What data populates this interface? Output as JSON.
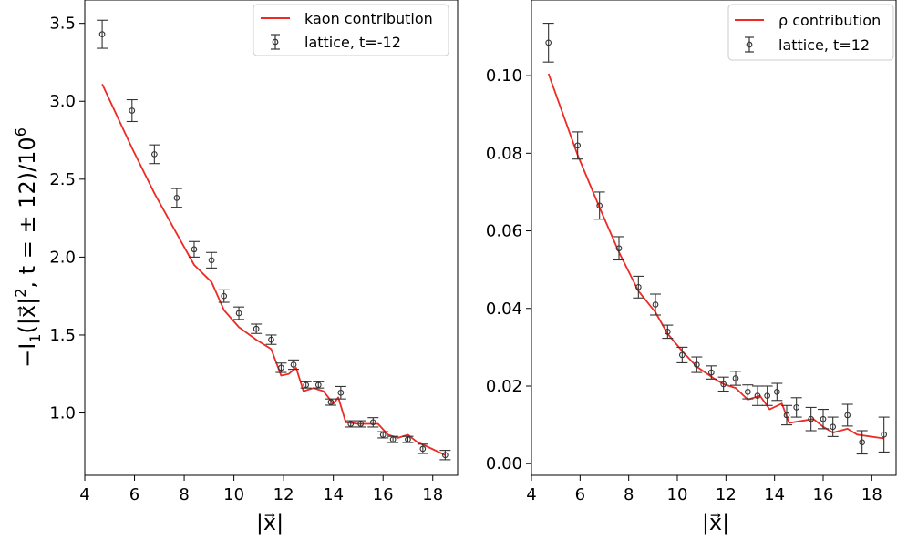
{
  "chart_data": [
    {
      "type": "line",
      "ylabel_parts": {
        "pre": "−I",
        "sub": "1",
        "mid": "(|x⃗|",
        "sup2": "2",
        "post": ", t = ± 12)/10",
        "sup6": "6"
      },
      "xlabel": "|x⃗|",
      "xlim": [
        4,
        19
      ],
      "ylim": [
        0.6,
        3.65
      ],
      "xticks": [
        4,
        6,
        8,
        10,
        12,
        14,
        16,
        18
      ],
      "yticks": [
        1.0,
        1.5,
        2.0,
        2.5,
        3.0,
        3.5
      ],
      "ytick_labels": [
        "1.0",
        "1.5",
        "2.0",
        "2.5",
        "3.0",
        "3.5"
      ],
      "legend_position": "top-right",
      "colors": {
        "model": "#ee2a24",
        "lattice": "#333333"
      },
      "model": {
        "name": "kaon contribution",
        "x": [
          4.7,
          5.9,
          6.8,
          7.7,
          8.4,
          9.1,
          9.6,
          10.2,
          10.9,
          11.5,
          11.9,
          12.2,
          12.5,
          12.8,
          13.2,
          13.6,
          14.0,
          14.2,
          14.5,
          15.0,
          15.4,
          15.8,
          16.2,
          16.6,
          17.0,
          17.4,
          17.7,
          18.5
        ],
        "y": [
          3.11,
          2.7,
          2.41,
          2.15,
          1.95,
          1.84,
          1.66,
          1.55,
          1.47,
          1.41,
          1.24,
          1.25,
          1.29,
          1.14,
          1.16,
          1.14,
          1.06,
          1.1,
          0.94,
          0.93,
          0.93,
          0.93,
          0.86,
          0.84,
          0.86,
          0.81,
          0.79,
          0.73
        ]
      },
      "lattice": {
        "name": "lattice, t=-12",
        "x": [
          4.7,
          5.9,
          6.8,
          7.7,
          8.4,
          9.1,
          9.6,
          10.2,
          10.9,
          11.5,
          11.9,
          12.4,
          12.9,
          13.4,
          13.9,
          14.3,
          14.7,
          15.1,
          15.6,
          16.0,
          16.4,
          17.0,
          17.6,
          18.5
        ],
        "y": [
          3.43,
          2.94,
          2.66,
          2.38,
          2.05,
          1.98,
          1.75,
          1.64,
          1.54,
          1.47,
          1.29,
          1.31,
          1.18,
          1.18,
          1.07,
          1.13,
          0.93,
          0.93,
          0.94,
          0.86,
          0.83,
          0.83,
          0.77,
          0.73
        ],
        "err": [
          0.09,
          0.07,
          0.06,
          0.06,
          0.05,
          0.05,
          0.04,
          0.04,
          0.03,
          0.03,
          0.03,
          0.03,
          0.02,
          0.02,
          0.02,
          0.04,
          0.02,
          0.02,
          0.03,
          0.02,
          0.02,
          0.02,
          0.03,
          0.03
        ]
      }
    },
    {
      "type": "line",
      "xlabel": "|x⃗|",
      "xlim": [
        4,
        19
      ],
      "ylim": [
        -0.003,
        0.1195
      ],
      "xticks": [
        4,
        6,
        8,
        10,
        12,
        14,
        16,
        18
      ],
      "yticks": [
        0.0,
        0.02,
        0.04,
        0.06,
        0.08,
        0.1
      ],
      "ytick_labels": [
        "0.00",
        "0.02",
        "0.04",
        "0.06",
        "0.08",
        "0.10"
      ],
      "legend_position": "top-right",
      "colors": {
        "model": "#ee2a24",
        "lattice": "#333333"
      },
      "model": {
        "name": "ρ contribution",
        "x": [
          4.7,
          5.9,
          6.8,
          7.6,
          8.4,
          9.1,
          9.6,
          10.2,
          10.8,
          11.5,
          11.9,
          12.4,
          12.9,
          13.4,
          13.8,
          14.3,
          14.6,
          15.1,
          15.6,
          16.0,
          16.4,
          17.0,
          17.4,
          18.5
        ],
        "y": [
          0.1005,
          0.0795,
          0.066,
          0.0545,
          0.0445,
          0.039,
          0.0335,
          0.029,
          0.025,
          0.022,
          0.0205,
          0.0195,
          0.0165,
          0.0175,
          0.014,
          0.0155,
          0.0105,
          0.011,
          0.0115,
          0.0095,
          0.008,
          0.009,
          0.0075,
          0.0065
        ]
      },
      "lattice": {
        "name": "lattice, t=12",
        "x": [
          4.7,
          5.9,
          6.8,
          7.6,
          8.4,
          9.1,
          9.6,
          10.2,
          10.8,
          11.4,
          11.9,
          12.4,
          12.9,
          13.3,
          13.7,
          14.1,
          14.5,
          14.9,
          15.5,
          16.0,
          16.4,
          17.0,
          17.6,
          18.5
        ],
        "y": [
          0.1085,
          0.082,
          0.0665,
          0.0555,
          0.0455,
          0.041,
          0.034,
          0.028,
          0.0255,
          0.0235,
          0.0205,
          0.022,
          0.0185,
          0.0175,
          0.0175,
          0.0185,
          0.0125,
          0.0145,
          0.0115,
          0.0115,
          0.0095,
          0.0125,
          0.0055,
          0.0075
        ]
      },
      "lattice_err": [
        0.005,
        0.0035,
        0.0035,
        0.003,
        0.0028,
        0.0027,
        0.0017,
        0.002,
        0.002,
        0.0017,
        0.0018,
        0.0018,
        0.0018,
        0.0025,
        0.0025,
        0.0022,
        0.0025,
        0.0025,
        0.003,
        0.0025,
        0.0025,
        0.0028,
        0.003,
        0.0045
      ]
    }
  ]
}
